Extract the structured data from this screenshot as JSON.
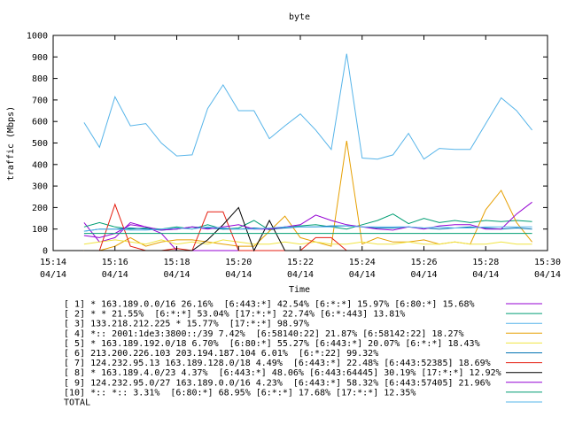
{
  "chart_data": {
    "type": "line",
    "title": "byte",
    "xlabel": "Time",
    "ylabel": "traffic (Mbps)",
    "ylim": [
      0,
      1000
    ],
    "xlim": [
      "15:14",
      "15:30"
    ],
    "yticks": [
      0,
      100,
      200,
      300,
      400,
      500,
      600,
      700,
      800,
      900,
      1000
    ],
    "xticks": [
      {
        "time": "15:14",
        "date": "04/14"
      },
      {
        "time": "15:16",
        "date": "04/14"
      },
      {
        "time": "15:18",
        "date": "04/14"
      },
      {
        "time": "15:20",
        "date": "04/14"
      },
      {
        "time": "15:22",
        "date": "04/14"
      },
      {
        "time": "15:24",
        "date": "04/14"
      },
      {
        "time": "15:26",
        "date": "04/14"
      },
      {
        "time": "15:28",
        "date": "04/14"
      },
      {
        "time": "15:30",
        "date": "04/14"
      }
    ],
    "grid": false,
    "legend_position": "bottom",
    "x": [
      "15:15",
      "15:15:30",
      "15:16",
      "15:16:30",
      "15:17",
      "15:17:30",
      "15:18",
      "15:18:30",
      "15:19",
      "15:19:30",
      "15:20",
      "15:20:30",
      "15:21",
      "15:21:30",
      "15:22",
      "15:22:30",
      "15:23",
      "15:23:30",
      "15:24",
      "15:24:30",
      "15:25",
      "15:25:30",
      "15:26",
      "15:26:30",
      "15:27",
      "15:27:30",
      "15:28",
      "15:28:30",
      "15:29",
      "15:29:30"
    ],
    "series": [
      {
        "name": "[ 1] * 163.189.0.0/16 26.16%  [6:443:*] 42.54% [6:*:*] 15.97% [6:80:*] 15.68%",
        "color": "#9400d3",
        "values": [
          130,
          40,
          60,
          130,
          110,
          80,
          0,
          0,
          0,
          0,
          0,
          0,
          0,
          0,
          0,
          0,
          0,
          0,
          0,
          0,
          0,
          0,
          0,
          0,
          0,
          0,
          0,
          0,
          0,
          0
        ]
      },
      {
        "name": "[ 2] * * 21.55%  [6:*:*] 53.04% [17:*:*] 22.74% [6:*:443] 13.81%",
        "color": "#009e73",
        "values": [
          110,
          130,
          110,
          100,
          105,
          100,
          110,
          100,
          120,
          100,
          105,
          140,
          95,
          110,
          115,
          120,
          110,
          100,
          120,
          140,
          170,
          125,
          150,
          130,
          140,
          130,
          140,
          135,
          140,
          135
        ]
      },
      {
        "name": "[ 3] 133.218.212.225 * 15.77%  [17:*:*] 98.97%",
        "color": "#56b4e9",
        "values": [
          595,
          480,
          715,
          580,
          590,
          500,
          440,
          445,
          660,
          770,
          650,
          650,
          520,
          580,
          635,
          560,
          470,
          915,
          430,
          425,
          445,
          545,
          425,
          475,
          470,
          470,
          590,
          710,
          650,
          560
        ]
      },
      {
        "name": "[ 4] *:: 2001:1de3:3800::/39 7.42%  [6:58140:22] 21.87% [6:58142:22] 18.27%",
        "color": "#e69f00",
        "values": [
          0,
          0,
          20,
          60,
          20,
          40,
          50,
          50,
          40,
          30,
          20,
          20,
          90,
          160,
          60,
          40,
          20,
          510,
          30,
          60,
          40,
          40,
          50,
          30,
          40,
          30,
          190,
          280,
          130,
          40
        ]
      },
      {
        "name": "[ 5] * 163.189.192.0/18 6.70%  [6:80:*] 55.27% [6:443:*] 20.07% [6:*:*] 18.43%",
        "color": "#f0e442",
        "values": [
          30,
          40,
          50,
          40,
          30,
          50,
          30,
          40,
          30,
          50,
          40,
          30,
          30,
          40,
          30,
          40,
          30,
          30,
          40,
          30,
          30,
          40,
          30,
          30,
          40,
          30,
          30,
          40,
          30,
          30
        ]
      },
      {
        "name": "[ 6] 213.200.226.103 203.194.187.104 6.01%  [6:*:22] 99.32%",
        "color": "#0072b2",
        "values": [
          90,
          100,
          100,
          105,
          100,
          95,
          100,
          110,
          105,
          100,
          100,
          105,
          100,
          105,
          110,
          110,
          115,
          115,
          110,
          105,
          105,
          110,
          105,
          100,
          105,
          110,
          105,
          100,
          105,
          100
        ]
      },
      {
        "name": "[ 7] 124.232.95.13 163.189.128.0/18 4.49%  [6:443:*] 22.48% [6:443:52385] 18.69%",
        "color": "#e51e10",
        "values": [
          0,
          0,
          215,
          20,
          0,
          0,
          10,
          0,
          180,
          180,
          0,
          0,
          0,
          0,
          0,
          60,
          60,
          0,
          0,
          0,
          0,
          0,
          0,
          0,
          0,
          0,
          0,
          0,
          0,
          0
        ]
      },
      {
        "name": "[ 8] * 163.189.4.0/23 4.37%  [6:443:*] 48.06% [6:443:64445] 30.19% [17:*:*] 12.92%",
        "color": "#000000",
        "values": [
          0,
          0,
          0,
          0,
          0,
          0,
          0,
          0,
          50,
          120,
          200,
          0,
          140,
          0,
          0,
          0,
          0,
          0,
          0,
          0,
          0,
          0,
          0,
          0,
          0,
          0,
          0,
          0,
          0,
          0
        ]
      },
      {
        "name": "[ 9] 124.232.95.0/27 163.189.0.0/16 4.23%  [6:443:*] 58.32% [6:443:57405] 21.96%",
        "color": "#9400d3",
        "values": [
          70,
          60,
          80,
          120,
          110,
          95,
          100,
          110,
          100,
          110,
          120,
          100,
          100,
          110,
          120,
          165,
          140,
          120,
          110,
          100,
          95,
          110,
          100,
          115,
          120,
          120,
          100,
          100,
          170,
          225
        ]
      },
      {
        "name": "[10] *:: *:: 3.31%  [6:80:*] 68.95% [6:*:*] 17.68% [17:*:*] 12.35%",
        "color": "#009e73",
        "values": [
          80,
          80,
          80,
          80,
          80,
          80,
          80,
          80,
          80,
          80,
          80,
          80,
          80,
          80,
          80,
          80,
          80,
          80,
          80,
          80,
          80,
          80,
          80,
          80,
          80,
          80,
          80,
          80,
          80,
          80
        ]
      },
      {
        "name": "TOTAL",
        "color": "#56b4e9",
        "values": [
          90,
          100,
          100,
          95,
          95,
          100,
          105,
          100,
          110,
          105,
          100,
          100,
          105,
          110,
          110,
          110,
          110,
          115,
          110,
          110,
          110,
          110,
          105,
          110,
          105,
          105,
          110,
          110,
          110,
          110
        ]
      }
    ]
  }
}
